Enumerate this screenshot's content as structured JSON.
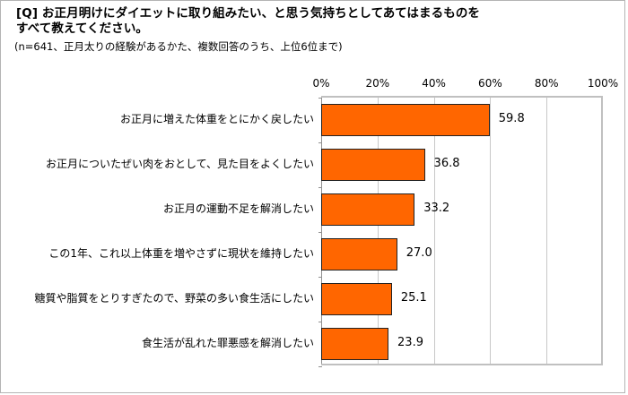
{
  "title": {
    "line1": "[Q] お正月明けにダイエットに取り組みたい、と思う気持ちとしてあてはまるものを",
    "line2": "すべて教えてください。",
    "note": "(n=641、正月太りの経験があるかた、複数回答のうち、上位6位まで)"
  },
  "colors": {
    "bar": "#ff6600",
    "grid": "#c8c8c8",
    "border": "#b4b4b4"
  },
  "chart_data": {
    "type": "bar",
    "orientation": "horizontal",
    "title": "[Q] お正月明けにダイエットに取り組みたい、と思う気持ちとしてあてはまるものをすべて教えてください。",
    "subtitle": "(n=641、正月太りの経験があるかた、複数回答のうち、上位6位まで)",
    "categories": [
      "お正月に増えた体重をとにかく戻したい",
      "お正月についたぜい肉をおとして、見た目をよくしたい",
      "お正月の運動不足を解消したい",
      "この1年、これ以上体重を増やさずに現状を維持したい",
      "糖質や脂質をとりすぎたので、野菜の多い食生活にしたい",
      "食生活が乱れた罪悪感を解消したい"
    ],
    "values": [
      59.8,
      36.8,
      33.2,
      27.0,
      25.1,
      23.9
    ],
    "value_labels": [
      "59.8",
      "36.8",
      "33.2",
      "27.0",
      "25.1",
      "23.9"
    ],
    "xlabel": "",
    "ylabel": "",
    "xlim": [
      0,
      100
    ],
    "xticks": [
      "0%",
      "20%",
      "40%",
      "60%",
      "80%",
      "100%"
    ],
    "grid": true,
    "legend": "none",
    "x_axis_position": "top"
  }
}
